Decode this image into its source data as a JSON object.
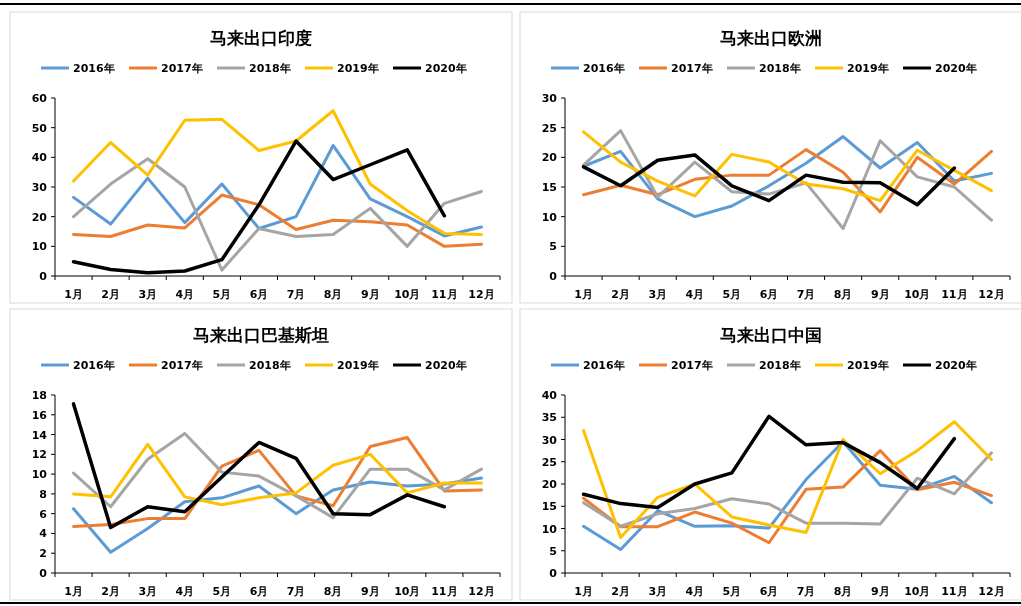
{
  "chart_data": [
    {
      "type": "line",
      "title": "马来出口印度",
      "categories": [
        "1月",
        "2月",
        "3月",
        "4月",
        "5月",
        "6月",
        "7月",
        "8月",
        "9月",
        "10月",
        "11月",
        "12月"
      ],
      "ylim": [
        0,
        60
      ],
      "yticks": [
        0,
        10,
        20,
        30,
        40,
        50,
        60
      ],
      "grid": false,
      "legend": "top",
      "series": [
        {
          "name": "2016年",
          "color": "#5b9bd5",
          "values": [
            26.5,
            17.5,
            33,
            18,
            31,
            16,
            20,
            44,
            26,
            20,
            13.5,
            16.5
          ]
        },
        {
          "name": "2017年",
          "color": "#ed7d31",
          "values": [
            14,
            13.3,
            17.2,
            16.2,
            27.3,
            24,
            15.7,
            18.8,
            18.3,
            17.2,
            10,
            10.7
          ]
        },
        {
          "name": "2018年",
          "color": "#a5a5a5",
          "values": [
            20,
            31,
            39.5,
            30,
            2,
            16,
            13.3,
            14,
            22.8,
            10,
            24.5,
            28.5
          ]
        },
        {
          "name": "2019年",
          "color": "#ffc000",
          "values": [
            32,
            45,
            34,
            52.5,
            52.8,
            42.3,
            45.5,
            55.7,
            31,
            22,
            14.3,
            14
          ]
        },
        {
          "name": "2020年",
          "color": "#000000",
          "values": [
            4.8,
            2.2,
            1.1,
            1.7,
            5.5,
            24,
            45.5,
            32.5,
            37.5,
            42.5,
            20.3,
            null
          ]
        }
      ]
    },
    {
      "type": "line",
      "title": "马来出口欧洲",
      "categories": [
        "1月",
        "2月",
        "3月",
        "4月",
        "5月",
        "6月",
        "7月",
        "8月",
        "9月",
        "10月",
        "11月",
        "12月"
      ],
      "ylim": [
        0,
        30
      ],
      "yticks": [
        0,
        5,
        10,
        15,
        20,
        25,
        30
      ],
      "grid": false,
      "legend": "top",
      "series": [
        {
          "name": "2016年",
          "color": "#5b9bd5",
          "values": [
            18.5,
            21,
            13,
            10,
            11.8,
            15.2,
            19,
            23.5,
            18.2,
            22.5,
            16,
            17.3
          ]
        },
        {
          "name": "2017年",
          "color": "#ed7d31",
          "values": [
            13.7,
            15.3,
            13.7,
            16.3,
            17,
            17,
            21.3,
            17.5,
            10.8,
            20,
            15.5,
            21
          ]
        },
        {
          "name": "2018年",
          "color": "#a5a5a5",
          "values": [
            18.7,
            24.5,
            13.3,
            19.2,
            14.2,
            13.8,
            15.7,
            8,
            22.8,
            16.7,
            15,
            9.4
          ]
        },
        {
          "name": "2019年",
          "color": "#ffc000",
          "values": [
            24.3,
            19.2,
            16,
            13.5,
            20.5,
            19.2,
            15.5,
            14.7,
            12.7,
            21.2,
            17.8,
            14.4
          ]
        },
        {
          "name": "2020年",
          "color": "#000000",
          "values": [
            18.4,
            15.2,
            19.5,
            20.4,
            15.2,
            12.7,
            17,
            15.8,
            15.7,
            12,
            18.2,
            null
          ]
        }
      ]
    },
    {
      "type": "line",
      "title": "马来出口巴基斯坦",
      "categories": [
        "1月",
        "2月",
        "3月",
        "4月",
        "5月",
        "6月",
        "7月",
        "8月",
        "9月",
        "10月",
        "11月",
        "12月"
      ],
      "ylim": [
        0,
        18
      ],
      "yticks": [
        0,
        2,
        4,
        6,
        8,
        10,
        12,
        14,
        16,
        18
      ],
      "grid": false,
      "legend": "top",
      "series": [
        {
          "name": "2016年",
          "color": "#5b9bd5",
          "values": [
            6.5,
            2.1,
            4.5,
            7.2,
            7.6,
            8.8,
            6,
            8.4,
            9.2,
            8.8,
            9,
            9.6
          ]
        },
        {
          "name": "2017年",
          "color": "#ed7d31",
          "values": [
            4.7,
            4.9,
            5.5,
            5.5,
            10.8,
            12.4,
            7.8,
            6.8,
            12.8,
            13.7,
            8.3,
            8.4
          ]
        },
        {
          "name": "2018年",
          "color": "#a5a5a5",
          "values": [
            10.1,
            6.7,
            11.5,
            14.1,
            10.2,
            9.8,
            7.8,
            5.6,
            10.5,
            10.5,
            8.4,
            10.5
          ]
        },
        {
          "name": "2019年",
          "color": "#ffc000",
          "values": [
            8,
            7.7,
            13,
            7.7,
            6.9,
            7.6,
            8.1,
            10.9,
            12,
            8.1,
            9.1,
            9.1
          ]
        },
        {
          "name": "2020年",
          "color": "#000000",
          "values": [
            17.1,
            4.6,
            6.7,
            6.2,
            9.7,
            13.2,
            11.6,
            6,
            5.9,
            7.9,
            6.7,
            null
          ]
        }
      ]
    },
    {
      "type": "line",
      "title": "马来出口中国",
      "categories": [
        "1月",
        "2月",
        "3月",
        "4月",
        "5月",
        "6月",
        "7月",
        "8月",
        "9月",
        "10月",
        "11月",
        "12月"
      ],
      "ylim": [
        0,
        40
      ],
      "yticks": [
        0,
        5,
        10,
        15,
        20,
        25,
        30,
        35,
        40
      ],
      "grid": false,
      "legend": "top",
      "series": [
        {
          "name": "2016年",
          "color": "#5b9bd5",
          "values": [
            10.5,
            5.3,
            14,
            10.5,
            10.6,
            10.1,
            21,
            29.5,
            19.7,
            18.8,
            21.7,
            15.8
          ]
        },
        {
          "name": "2017年",
          "color": "#ed7d31",
          "values": [
            16.8,
            10.4,
            10.4,
            13.7,
            11.2,
            6.8,
            18.8,
            19.3,
            27.5,
            18.7,
            20.4,
            17.4
          ]
        },
        {
          "name": "2018年",
          "color": "#a5a5a5",
          "values": [
            15.8,
            10.5,
            13.3,
            14.5,
            16.7,
            15.5,
            11.2,
            11.2,
            11,
            21.3,
            17.8,
            27
          ]
        },
        {
          "name": "2019年",
          "color": "#ffc000",
          "values": [
            32,
            8,
            17,
            20,
            12.6,
            10.8,
            9.1,
            30,
            22.3,
            27.5,
            34,
            25.5
          ]
        },
        {
          "name": "2020年",
          "color": "#000000",
          "values": [
            17.7,
            15.6,
            14.7,
            20,
            22.5,
            35.2,
            28.8,
            29.3,
            24.8,
            19,
            30.2,
            null
          ]
        }
      ]
    }
  ]
}
